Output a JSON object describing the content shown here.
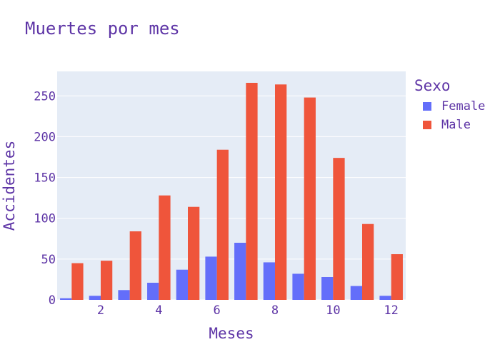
{
  "chart_data": {
    "type": "bar",
    "title": "Muertes por mes",
    "xlabel": "Meses",
    "ylabel": "Accidentes",
    "x": [
      1,
      2,
      3,
      4,
      5,
      6,
      7,
      8,
      9,
      10,
      11,
      12
    ],
    "xticks": [
      2,
      4,
      6,
      8,
      10,
      12
    ],
    "yticks": [
      0,
      50,
      100,
      150,
      200,
      250
    ],
    "xlim": [
      0.5,
      12.5
    ],
    "ylim": [
      0,
      280
    ],
    "grid": true,
    "legend_title": "Sexo",
    "legend_position": "right",
    "series": [
      {
        "name": "Female",
        "color": "#636efa",
        "values": [
          2,
          5,
          12,
          21,
          37,
          53,
          70,
          46,
          32,
          28,
          17,
          5
        ]
      },
      {
        "name": "Male",
        "color": "#ef553b",
        "values": [
          45,
          48,
          84,
          128,
          114,
          184,
          266,
          264,
          248,
          174,
          93,
          56
        ]
      }
    ]
  }
}
